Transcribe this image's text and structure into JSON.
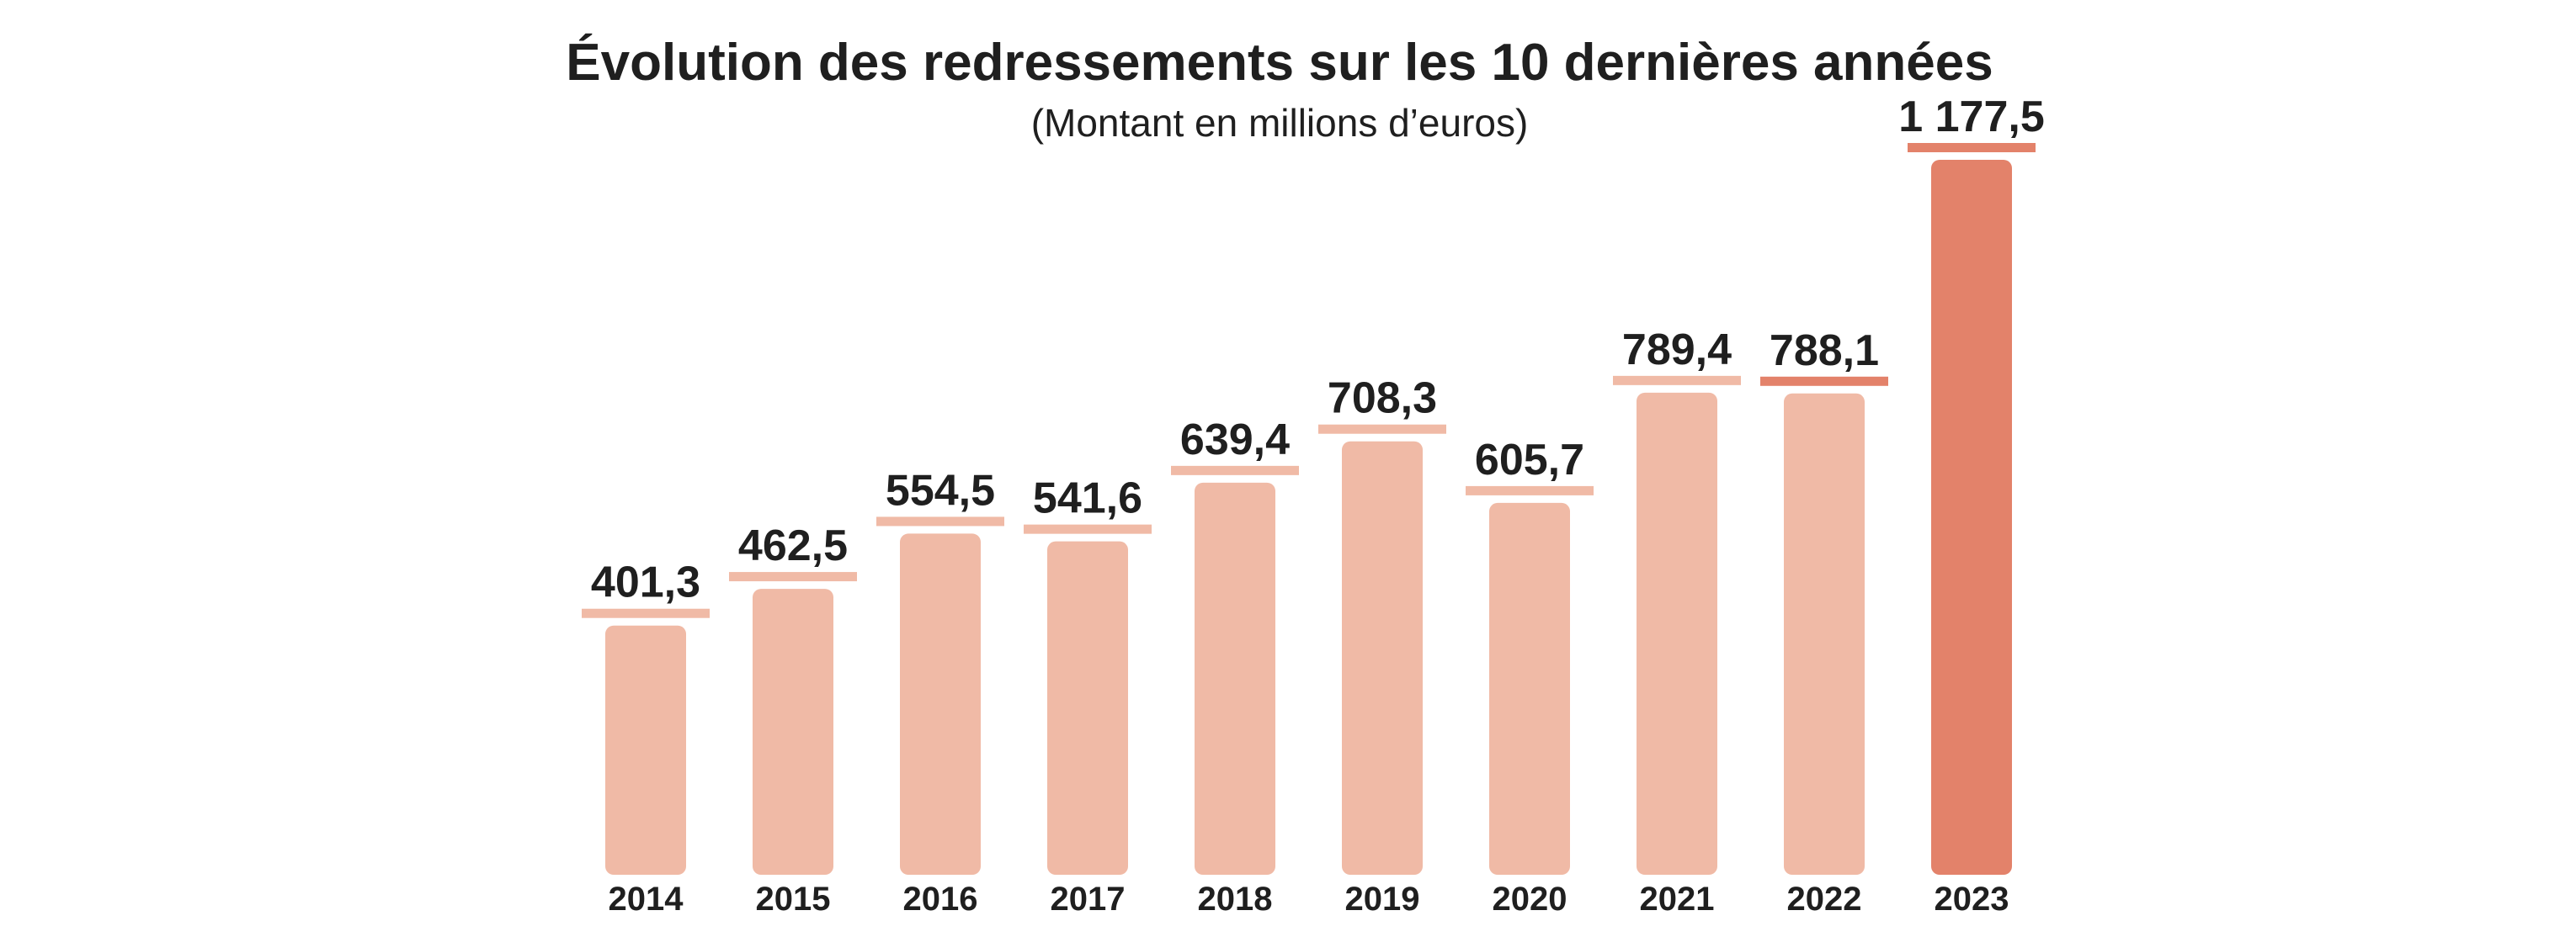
{
  "chart_data": {
    "type": "bar",
    "title": "Évolution des redressements sur les 10 dernières années",
    "subtitle": "(Montant en millions d’euros)",
    "xlabel": "",
    "ylabel": "",
    "categories": [
      "2014",
      "2015",
      "2016",
      "2017",
      "2018",
      "2019",
      "2020",
      "2021",
      "2022",
      "2023"
    ],
    "values": [
      401.3,
      462.5,
      554.5,
      541.6,
      639.4,
      708.3,
      605.7,
      789.4,
      788.1,
      1177.5
    ],
    "value_labels": [
      "401,3",
      "462,5",
      "554,5",
      "541,6",
      "639,4",
      "708,3",
      "605,7",
      "789,4",
      "788,1",
      "1 177,5"
    ],
    "highlighted": "2023",
    "ylim": [
      0,
      1177.5
    ],
    "grid": false,
    "legend": "none",
    "colors": {
      "bar": "#f0baa6",
      "bar_highlight": "#e3826a",
      "underline": "#f0baa6",
      "underline_highlight": "#e3826a",
      "text": "#1f1f1f"
    }
  }
}
